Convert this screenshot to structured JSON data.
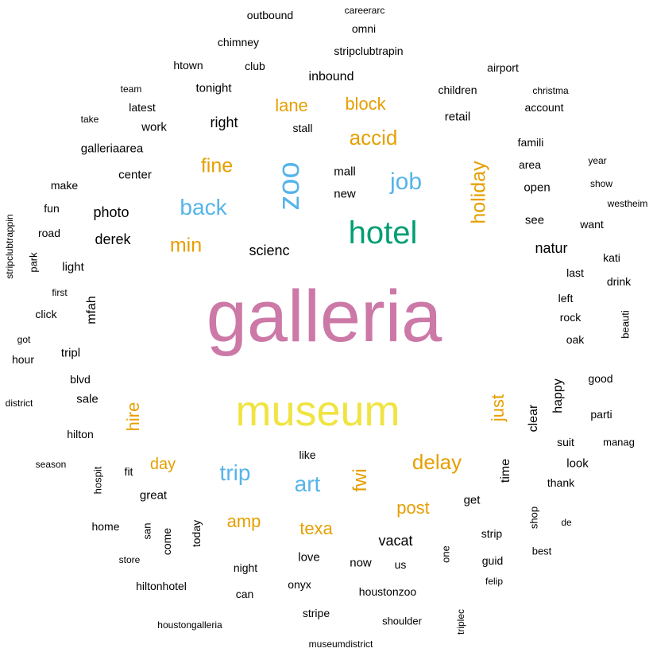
{
  "colors": {
    "c1": "#000000",
    "c2": "#e69f00",
    "c3": "#56b4e9",
    "c4": "#009e73",
    "c5": "#f0e442",
    "c6": "#cc79a7"
  },
  "words": [
    {
      "text": "galleria",
      "color": "c6"
    },
    {
      "text": "museum",
      "color": "c5"
    },
    {
      "text": "hotel",
      "color": "c4"
    },
    {
      "text": "zoo",
      "color": "c3"
    },
    {
      "text": "job",
      "color": "c3"
    },
    {
      "text": "back",
      "color": "c3"
    },
    {
      "text": "trip",
      "color": "c3"
    },
    {
      "text": "art",
      "color": "c3"
    },
    {
      "text": "accid",
      "color": "c2"
    },
    {
      "text": "fine",
      "color": "c2"
    },
    {
      "text": "min",
      "color": "c2"
    },
    {
      "text": "holiday",
      "color": "c2"
    },
    {
      "text": "lane",
      "color": "c2"
    },
    {
      "text": "block",
      "color": "c2"
    },
    {
      "text": "delay",
      "color": "c2"
    },
    {
      "text": "hire",
      "color": "c2"
    },
    {
      "text": "just",
      "color": "c2"
    },
    {
      "text": "fwi",
      "color": "c2"
    },
    {
      "text": "post",
      "color": "c2"
    },
    {
      "text": "amp",
      "color": "c2"
    },
    {
      "text": "texa",
      "color": "c2"
    },
    {
      "text": "day",
      "color": "c2"
    },
    {
      "text": "right",
      "color": "c1"
    },
    {
      "text": "photo",
      "color": "c1"
    },
    {
      "text": "derek",
      "color": "c1"
    },
    {
      "text": "scienc",
      "color": "c1"
    },
    {
      "text": "natur",
      "color": "c1"
    },
    {
      "text": "inbound",
      "color": "c1"
    },
    {
      "text": "vacat",
      "color": "c1"
    },
    {
      "text": "clear",
      "color": "c1"
    },
    {
      "text": "happy",
      "color": "c1"
    },
    {
      "text": "time",
      "color": "c1"
    },
    {
      "text": "mfah",
      "color": "c1"
    },
    {
      "text": "mall",
      "color": "c1"
    },
    {
      "text": "new",
      "color": "c1"
    },
    {
      "text": "outbound",
      "color": "c1"
    },
    {
      "text": "careerarc",
      "color": "c1"
    },
    {
      "text": "omni",
      "color": "c1"
    },
    {
      "text": "chimney",
      "color": "c1"
    },
    {
      "text": "stripclubtrapin",
      "color": "c1"
    },
    {
      "text": "htown",
      "color": "c1"
    },
    {
      "text": "club",
      "color": "c1"
    },
    {
      "text": "airport",
      "color": "c1"
    },
    {
      "text": "team",
      "color": "c1"
    },
    {
      "text": "tonight",
      "color": "c1"
    },
    {
      "text": "children",
      "color": "c1"
    },
    {
      "text": "christma",
      "color": "c1"
    },
    {
      "text": "latest",
      "color": "c1"
    },
    {
      "text": "account",
      "color": "c1"
    },
    {
      "text": "take",
      "color": "c1"
    },
    {
      "text": "stall",
      "color": "c1"
    },
    {
      "text": "retail",
      "color": "c1"
    },
    {
      "text": "work",
      "color": "c1"
    },
    {
      "text": "famili",
      "color": "c1"
    },
    {
      "text": "galleriaarea",
      "color": "c1"
    },
    {
      "text": "year",
      "color": "c1"
    },
    {
      "text": "area",
      "color": "c1"
    },
    {
      "text": "center",
      "color": "c1"
    },
    {
      "text": "show",
      "color": "c1"
    },
    {
      "text": "make",
      "color": "c1"
    },
    {
      "text": "open",
      "color": "c1"
    },
    {
      "text": "westheim",
      "color": "c1"
    },
    {
      "text": "fun",
      "color": "c1"
    },
    {
      "text": "stripclubtrappin",
      "color": "c1"
    },
    {
      "text": "see",
      "color": "c1"
    },
    {
      "text": "want",
      "color": "c1"
    },
    {
      "text": "road",
      "color": "c1"
    },
    {
      "text": "park",
      "color": "c1"
    },
    {
      "text": "kati",
      "color": "c1"
    },
    {
      "text": "light",
      "color": "c1"
    },
    {
      "text": "last",
      "color": "c1"
    },
    {
      "text": "drink",
      "color": "c1"
    },
    {
      "text": "first",
      "color": "c1"
    },
    {
      "text": "left",
      "color": "c1"
    },
    {
      "text": "click",
      "color": "c1"
    },
    {
      "text": "rock",
      "color": "c1"
    },
    {
      "text": "beauti",
      "color": "c1"
    },
    {
      "text": "got",
      "color": "c1"
    },
    {
      "text": "oak",
      "color": "c1"
    },
    {
      "text": "tripl",
      "color": "c1"
    },
    {
      "text": "hour",
      "color": "c1"
    },
    {
      "text": "blvd",
      "color": "c1"
    },
    {
      "text": "good",
      "color": "c1"
    },
    {
      "text": "district",
      "color": "c1"
    },
    {
      "text": "sale",
      "color": "c1"
    },
    {
      "text": "parti",
      "color": "c1"
    },
    {
      "text": "hilton",
      "color": "c1"
    },
    {
      "text": "suit",
      "color": "c1"
    },
    {
      "text": "manag",
      "color": "c1"
    },
    {
      "text": "like",
      "color": "c1"
    },
    {
      "text": "season",
      "color": "c1"
    },
    {
      "text": "hospit",
      "color": "c1"
    },
    {
      "text": "fit",
      "color": "c1"
    },
    {
      "text": "look",
      "color": "c1"
    },
    {
      "text": "thank",
      "color": "c1"
    },
    {
      "text": "great",
      "color": "c1"
    },
    {
      "text": "get",
      "color": "c1"
    },
    {
      "text": "shop",
      "color": "c1"
    },
    {
      "text": "home",
      "color": "c1"
    },
    {
      "text": "san",
      "color": "c1"
    },
    {
      "text": "come",
      "color": "c1"
    },
    {
      "text": "today",
      "color": "c1"
    },
    {
      "text": "de",
      "color": "c1"
    },
    {
      "text": "strip",
      "color": "c1"
    },
    {
      "text": "best",
      "color": "c1"
    },
    {
      "text": "one",
      "color": "c1"
    },
    {
      "text": "store",
      "color": "c1"
    },
    {
      "text": "love",
      "color": "c1"
    },
    {
      "text": "now",
      "color": "c1"
    },
    {
      "text": "us",
      "color": "c1"
    },
    {
      "text": "guid",
      "color": "c1"
    },
    {
      "text": "night",
      "color": "c1"
    },
    {
      "text": "felip",
      "color": "c1"
    },
    {
      "text": "hiltonhotel",
      "color": "c1"
    },
    {
      "text": "onyx",
      "color": "c1"
    },
    {
      "text": "can",
      "color": "c1"
    },
    {
      "text": "houstonzoo",
      "color": "c1"
    },
    {
      "text": "stripe",
      "color": "c1"
    },
    {
      "text": "shoulder",
      "color": "c1"
    },
    {
      "text": "triplec",
      "color": "c1"
    },
    {
      "text": "houstongalleria",
      "color": "c1"
    },
    {
      "text": "museumdistrict",
      "color": "c1"
    }
  ]
}
